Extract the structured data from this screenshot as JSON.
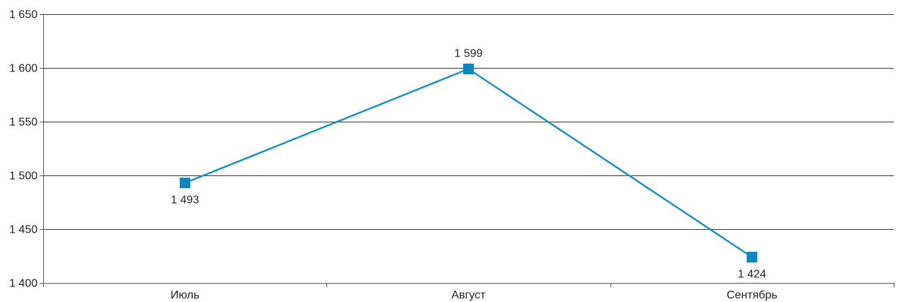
{
  "chart_data": {
    "type": "line",
    "categories": [
      "Июль",
      "Август",
      "Сентябрь"
    ],
    "series": [
      {
        "values": [
          1493,
          1599,
          1424
        ],
        "value_labels": [
          "1 493",
          "1 599",
          "1 424"
        ]
      }
    ],
    "ylim": [
      1400,
      1650
    ],
    "y_ticks": [
      1400,
      1450,
      1500,
      1550,
      1600,
      1650
    ],
    "y_tick_labels": [
      "1 400",
      "1 450",
      "1 500",
      "1 550",
      "1 600",
      "1 650"
    ],
    "grid": true,
    "legend": "none",
    "colors": {
      "line": "#1a8fc1",
      "marker": "#0e86bd"
    }
  }
}
